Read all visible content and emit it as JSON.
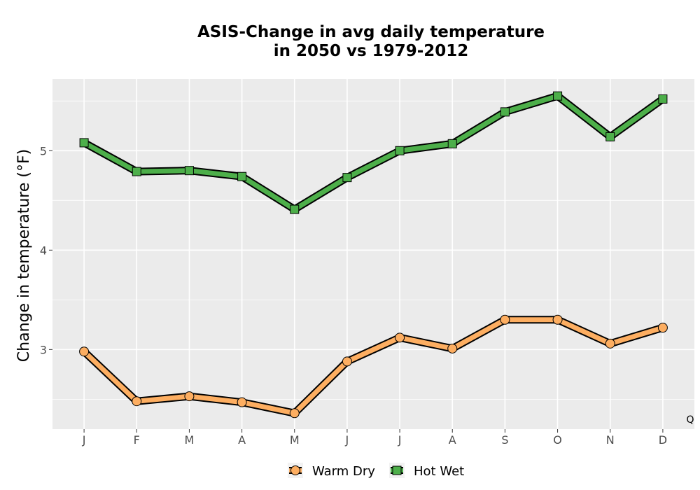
{
  "chart_data": {
    "type": "line",
    "title": [
      "ASIS-Change in avg daily temperature",
      "in 2050 vs 1979-2012"
    ],
    "xlabel": "",
    "ylabel": "Change in temperature (°F)",
    "categories": [
      "J",
      "F",
      "M",
      "A",
      "M",
      "J",
      "J",
      "A",
      "S",
      "O",
      "N",
      "D"
    ],
    "yticks": [
      3,
      4,
      5
    ],
    "ylim": [
      2.2,
      5.72
    ],
    "grid": true,
    "legend_position": "bottom",
    "annotation": "Q",
    "series": [
      {
        "name": "Warm Dry",
        "marker": "circle",
        "color": "#fdae61",
        "values": [
          2.98,
          2.48,
          2.53,
          2.47,
          2.36,
          2.88,
          3.12,
          3.01,
          3.3,
          3.3,
          3.06,
          3.22
        ]
      },
      {
        "name": "Hot Wet",
        "marker": "square",
        "color": "#4daf4a",
        "values": [
          5.08,
          4.79,
          4.8,
          4.74,
          4.41,
          4.73,
          5.0,
          5.07,
          5.39,
          5.55,
          5.14,
          5.52
        ]
      }
    ]
  },
  "colors": {
    "panel_bg": "#ebebeb",
    "grid": "#ffffff",
    "line_outline": "#000000"
  }
}
